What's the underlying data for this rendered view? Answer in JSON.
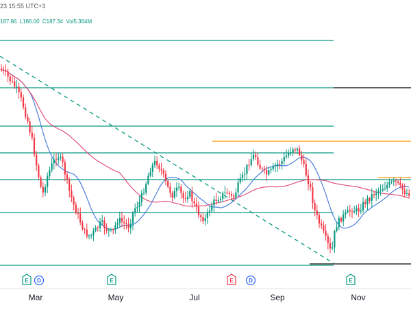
{
  "header": {
    "timestamp": "23 15:55 UTC+3",
    "ohlcv": [
      "187.86",
      "L186.00",
      "C187.34",
      "Vol5.364M"
    ]
  },
  "colors": {
    "up": "#089981",
    "down": "#f23645",
    "ma_fast": "#4a7ddb",
    "ma_slow": "#e0507a",
    "hline": "#089981",
    "resistance": "#ff9800",
    "black_line": "#000000",
    "earnings_e": "#089981",
    "earnings_e_red": "#f23645",
    "dividend_d": "#2962ff"
  },
  "chart_data": {
    "type": "candlestick",
    "x_ticks": [
      "Mar",
      "May",
      "Jul",
      "Sep",
      "Nov"
    ],
    "event_markers": [
      {
        "label": "E",
        "month": "Feb",
        "color": "green"
      },
      {
        "label": "D",
        "month": "Feb",
        "color": "blue"
      },
      {
        "label": "E",
        "month": "May",
        "color": "green"
      },
      {
        "label": "E",
        "month": "Aug",
        "color": "red"
      },
      {
        "label": "D",
        "month": "Aug",
        "color": "blue"
      },
      {
        "label": "E",
        "month": "Nov",
        "color": "green"
      }
    ],
    "lines": {
      "horizontal_levels": 7,
      "resistance_lines": 2,
      "moving_averages": [
        "fast",
        "slow"
      ],
      "downtrend_line": "dashed"
    }
  }
}
